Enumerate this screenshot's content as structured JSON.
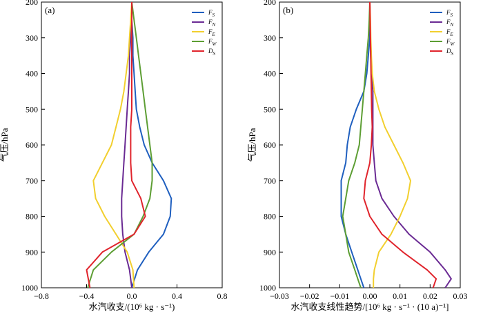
{
  "chart_data": [
    {
      "type": "line",
      "panel_label": "(a)",
      "xlabel": "水汽收支/(10⁶ kg · s⁻¹)",
      "ylabel": "气压/hPa",
      "xlim": [
        -0.8,
        0.8
      ],
      "ylim": [
        1000,
        200
      ],
      "xticks": [
        "−0.8",
        "−0.4",
        "0.0",
        "0.4",
        "0.8"
      ],
      "xtick_values": [
        -0.8,
        -0.4,
        0.0,
        0.4,
        0.8
      ],
      "yticks": [
        "200",
        "300",
        "400",
        "500",
        "600",
        "700",
        "800",
        "900",
        "1000"
      ],
      "ytick_values": [
        200,
        300,
        400,
        500,
        600,
        700,
        800,
        900,
        1000
      ],
      "legend_position": "top-right",
      "y": [
        1000,
        950,
        900,
        850,
        800,
        750,
        700,
        650,
        600,
        550,
        500,
        450,
        400,
        350,
        300,
        250,
        200
      ],
      "series": [
        {
          "name": "F_S",
          "color": "#1f5fbf",
          "values": [
            0.0,
            0.05,
            0.15,
            0.28,
            0.34,
            0.35,
            0.28,
            0.18,
            0.11,
            0.07,
            0.04,
            0.03,
            0.02,
            0.01,
            0.01,
            0.0,
            0.0
          ]
        },
        {
          "name": "F_N",
          "color": "#6a2a93",
          "values": [
            0.0,
            -0.02,
            -0.06,
            -0.08,
            -0.09,
            -0.09,
            -0.08,
            -0.07,
            -0.06,
            -0.05,
            -0.04,
            -0.03,
            -0.02,
            -0.02,
            -0.01,
            0.0,
            0.0
          ]
        },
        {
          "name": "F_E",
          "color": "#f2cf2e",
          "values": [
            0.02,
            0.01,
            -0.04,
            -0.14,
            -0.24,
            -0.32,
            -0.34,
            -0.26,
            -0.18,
            -0.14,
            -0.1,
            -0.07,
            -0.05,
            -0.03,
            -0.02,
            -0.01,
            0.0
          ]
        },
        {
          "name": "F_W",
          "color": "#5d9e34",
          "values": [
            -0.39,
            -0.34,
            -0.18,
            0.02,
            0.1,
            0.16,
            0.18,
            0.18,
            0.16,
            0.14,
            0.12,
            0.1,
            0.08,
            0.06,
            0.04,
            0.02,
            0.0
          ]
        },
        {
          "name": "D_S",
          "color": "#e0242c",
          "values": [
            -0.37,
            -0.4,
            -0.26,
            0.02,
            0.12,
            0.08,
            0.0,
            -0.01,
            -0.01,
            -0.01,
            0.0,
            0.0,
            0.0,
            0.0,
            0.0,
            0.0,
            0.0
          ]
        }
      ],
      "legend": [
        {
          "base": "F",
          "sub": "S"
        },
        {
          "base": "F",
          "sub": "N"
        },
        {
          "base": "F",
          "sub": "E"
        },
        {
          "base": "F",
          "sub": "W"
        },
        {
          "base": "D",
          "sub": "S"
        }
      ]
    },
    {
      "type": "line",
      "panel_label": "(b)",
      "xlabel": "水汽收支线性趋势/[10⁶ kg · s⁻¹ · (10 a)⁻¹]",
      "ylabel": "气压/hPa",
      "xlim": [
        -0.03,
        0.03
      ],
      "ylim": [
        1000,
        200
      ],
      "xticks": [
        "−0.03",
        "−0.02",
        "−0.01",
        "0.00",
        "0.01",
        "0.02",
        "0.03"
      ],
      "xtick_values": [
        -0.03,
        -0.02,
        -0.01,
        0.0,
        0.01,
        0.02,
        0.03
      ],
      "yticks": [
        "200",
        "300",
        "400",
        "500",
        "600",
        "700",
        "800",
        "900",
        "1000"
      ],
      "ytick_values": [
        200,
        300,
        400,
        500,
        600,
        700,
        800,
        900,
        1000
      ],
      "legend_position": "top-right",
      "y": [
        1000,
        975,
        950,
        900,
        850,
        800,
        750,
        700,
        650,
        600,
        550,
        500,
        450,
        400,
        350,
        300,
        250,
        200
      ],
      "series": [
        {
          "name": "F_S",
          "color": "#1f5fbf",
          "values": [
            -0.002,
            -0.003,
            -0.004,
            -0.006,
            -0.008,
            -0.0095,
            -0.0095,
            -0.0095,
            -0.008,
            -0.0075,
            -0.0065,
            -0.0045,
            -0.002,
            -0.001,
            -0.0005,
            0.0,
            0.0,
            0.0
          ]
        },
        {
          "name": "F_N",
          "color": "#6a2a93",
          "values": [
            0.025,
            0.027,
            0.025,
            0.02,
            0.013,
            0.008,
            0.004,
            0.002,
            0.0015,
            0.001,
            0.001,
            0.001,
            0.001,
            0.0005,
            0.0003,
            0.0002,
            0.0001,
            0.0
          ]
        },
        {
          "name": "F_E",
          "color": "#f2cf2e",
          "values": [
            0.0012,
            0.0012,
            0.0015,
            0.003,
            0.007,
            0.01,
            0.0125,
            0.0135,
            0.011,
            0.008,
            0.005,
            0.003,
            0.0015,
            0.0008,
            0.0005,
            0.0003,
            0.0002,
            0.0
          ]
        },
        {
          "name": "F_W",
          "color": "#5d9e34",
          "values": [
            -0.003,
            -0.004,
            -0.005,
            -0.007,
            -0.008,
            -0.009,
            -0.008,
            -0.007,
            -0.005,
            -0.0035,
            -0.003,
            -0.0025,
            -0.002,
            -0.0015,
            -0.001,
            -0.0005,
            -0.0002,
            0.0
          ]
        },
        {
          "name": "D_S",
          "color": "#e0242c",
          "values": [
            0.021,
            0.022,
            0.019,
            0.011,
            0.004,
            0.0,
            -0.002,
            -0.0015,
            0.0,
            0.0005,
            0.0008,
            0.0006,
            0.0005,
            0.0004,
            0.0003,
            0.0002,
            0.0001,
            0.0
          ]
        }
      ],
      "legend": [
        {
          "base": "F",
          "sub": "S"
        },
        {
          "base": "F",
          "sub": "N"
        },
        {
          "base": "F",
          "sub": "E"
        },
        {
          "base": "F",
          "sub": "W"
        },
        {
          "base": "D",
          "sub": "S"
        }
      ]
    }
  ]
}
